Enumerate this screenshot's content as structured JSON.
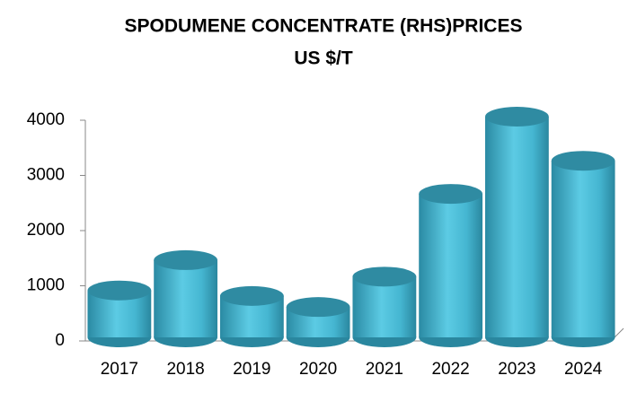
{
  "chart_data": {
    "type": "bar",
    "title": "SPODUMENE CONCENTRATE (RHS)PRICES",
    "subtitle": "US $/T",
    "categories": [
      "2017",
      "2018",
      "2019",
      "2020",
      "2021",
      "2022",
      "2023",
      "2024"
    ],
    "values": [
      850,
      1400,
      750,
      550,
      1100,
      2600,
      4000,
      3200
    ],
    "color": "#3fb0cc",
    "ylim": [
      0,
      4000
    ],
    "yticks": [
      0,
      1000,
      2000,
      3000,
      4000
    ]
  }
}
